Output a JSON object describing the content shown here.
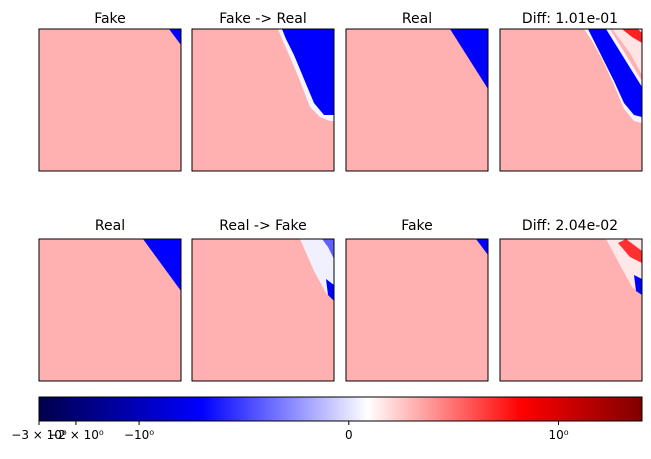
{
  "chart_data": {
    "type": "heatmap",
    "colormap": "seismic",
    "colors": {
      "background": "#ffb0b0",
      "blue": "#0000ff",
      "white_edge": "#f4f4ff",
      "red": "#ff2020"
    },
    "panels": [
      {
        "title": "Fake"
      },
      {
        "title": "Fake -> Real"
      },
      {
        "title": "Real"
      },
      {
        "title": "Diff: 1.01e-01"
      },
      {
        "title": "Real"
      },
      {
        "title": "Real -> Fake"
      },
      {
        "title": "Fake"
      },
      {
        "title": "Diff: 2.04e-02"
      }
    ],
    "colorbar": {
      "scale": "symlog",
      "range": [
        -3,
        2.5
      ],
      "tick_labels": [
        {
          "value": -3,
          "label": "−3 × 10⁰"
        },
        {
          "value": -2,
          "label": "−2 × 10⁰"
        },
        {
          "value": -1,
          "label": "−10⁰"
        },
        {
          "value": 0,
          "label": "0"
        },
        {
          "value": 1,
          "label": "10⁰"
        }
      ]
    }
  }
}
